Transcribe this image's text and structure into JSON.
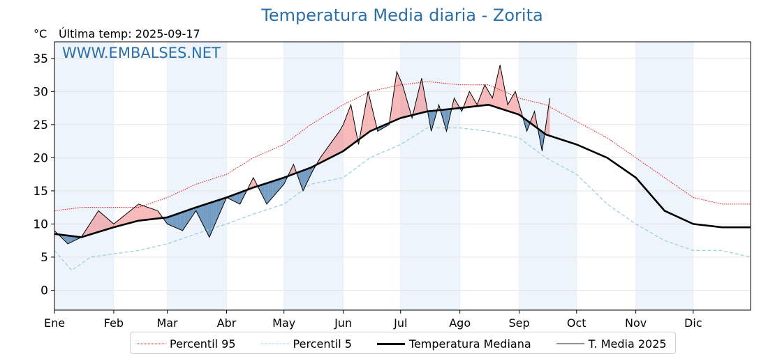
{
  "title": "Temperatura Media diaria - Zorita",
  "unit": "°C",
  "last_temp": "Última temp: 2025-09-17",
  "watermark": "WWW.EMBALSES.NET",
  "colors": {
    "title": "#2a6fa8",
    "p95": "#ee1111",
    "p5": "#9ccfe0",
    "median": "#000000",
    "above_fill": "#f08080",
    "below_fill": "#4a7fb0",
    "month_band": "#eef4fb"
  },
  "legend": [
    {
      "label": "Percentil 95",
      "style": "dotted",
      "color": "#ee1111"
    },
    {
      "label": "Percentil 5",
      "style": "dashed",
      "color": "#9ccfe0"
    },
    {
      "label": "Temperatura Mediana",
      "style": "thick",
      "color": "#000000"
    },
    {
      "label": "T. Media 2025",
      "style": "thin",
      "color": "#000000"
    }
  ],
  "chart_data": {
    "type": "line",
    "title": "Temperatura Media diaria - Zorita",
    "ylabel": "°C",
    "ylim": [
      -3,
      37.5
    ],
    "yticks": [
      0,
      5,
      10,
      15,
      20,
      25,
      30,
      35
    ],
    "months": [
      "Ene",
      "Feb",
      "Mar",
      "Abr",
      "May",
      "Jun",
      "Jul",
      "Ago",
      "Sep",
      "Oct",
      "Nov",
      "Dic"
    ],
    "month_start_day": [
      1,
      32,
      60,
      91,
      121,
      152,
      182,
      213,
      244,
      274,
      305,
      335
    ],
    "grid": true,
    "legend_position": "bottom",
    "series": [
      {
        "name": "Percentil 95",
        "x": [
          1,
          15,
          32,
          45,
          60,
          75,
          91,
          105,
          121,
          135,
          152,
          166,
          182,
          196,
          213,
          228,
          244,
          258,
          274,
          290,
          305,
          320,
          335,
          350,
          365
        ],
        "y": [
          12,
          12.5,
          12.5,
          12.5,
          14,
          16,
          17.5,
          20,
          22,
          25,
          28,
          30,
          31,
          31.5,
          31,
          31,
          29,
          28,
          25.5,
          23,
          20,
          17,
          14,
          13,
          13
        ]
      },
      {
        "name": "Percentil 5",
        "x": [
          1,
          10,
          20,
          32,
          45,
          60,
          75,
          91,
          105,
          121,
          135,
          152,
          166,
          182,
          196,
          213,
          228,
          244,
          258,
          274,
          290,
          305,
          320,
          335,
          350,
          365
        ],
        "y": [
          6,
          3,
          5,
          5.5,
          6,
          7,
          8.5,
          10,
          11.5,
          13,
          16,
          17,
          20,
          22,
          24.5,
          24.5,
          24,
          23,
          20,
          17.5,
          13,
          10,
          7.5,
          6,
          6,
          5
        ]
      },
      {
        "name": "Temperatura Mediana",
        "x": [
          1,
          15,
          32,
          45,
          60,
          75,
          91,
          105,
          121,
          135,
          152,
          166,
          182,
          196,
          213,
          228,
          244,
          258,
          274,
          290,
          305,
          320,
          335,
          350,
          365
        ],
        "y": [
          8.5,
          8,
          9.5,
          10.5,
          11,
          12.5,
          14,
          15.5,
          17,
          18.5,
          21,
          24,
          26,
          27,
          27.5,
          28,
          26.5,
          23.5,
          22,
          20,
          17,
          12,
          10,
          9.5,
          9.5
        ]
      },
      {
        "name": "T. Media 2025",
        "x": [
          1,
          8,
          15,
          24,
          32,
          45,
          55,
          60,
          68,
          75,
          82,
          91,
          98,
          105,
          112,
          121,
          126,
          131,
          136,
          140,
          145,
          150,
          152,
          156,
          160,
          165,
          170,
          176,
          180,
          183,
          188,
          193,
          198,
          202,
          206,
          210,
          214,
          218,
          222,
          226,
          230,
          234,
          238,
          242,
          244,
          248,
          252,
          256,
          260
        ],
        "y": [
          9,
          7,
          8,
          12,
          10,
          13,
          12,
          10,
          9,
          12,
          8,
          14,
          13,
          17,
          13,
          16,
          19,
          15,
          18,
          20,
          22,
          24,
          25,
          28,
          22,
          30,
          24,
          25,
          33,
          31,
          26,
          32,
          24,
          28,
          24,
          29,
          27,
          30,
          28,
          31,
          29,
          34,
          28,
          30,
          28,
          24,
          27,
          21,
          29
        ]
      }
    ]
  }
}
